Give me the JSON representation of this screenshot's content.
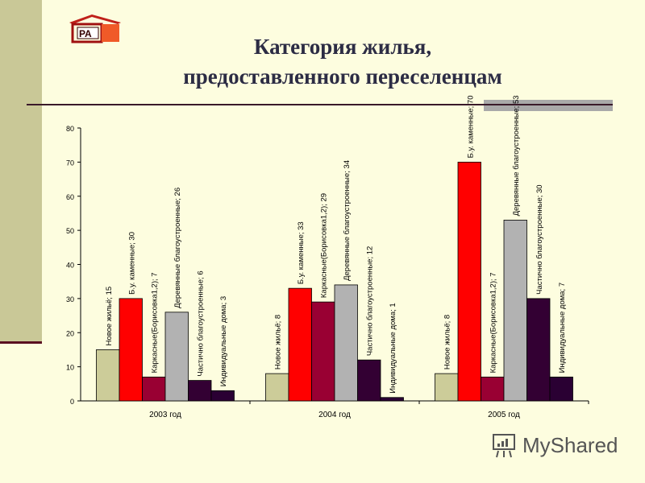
{
  "header": {
    "title_line1": "Категория жилья,",
    "title_line2": "предоставленного переселенцам",
    "logo_text": "РА"
  },
  "watermark": "MyShared",
  "chart_data": {
    "type": "bar",
    "categories": [
      "2003 год",
      "2004 год",
      "2005 год"
    ],
    "series": [
      {
        "name": "Новое жильё",
        "values": [
          15,
          8,
          8
        ],
        "color": "#cccc99"
      },
      {
        "name": "Б.у. каменные",
        "values": [
          30,
          33,
          70
        ],
        "color": "#ff0000"
      },
      {
        "name": "Каркасные(Борисовка1,2)",
        "values": [
          7,
          29,
          7
        ],
        "color": "#990033"
      },
      {
        "name": "Деревянные благоустроенные",
        "values": [
          26,
          34,
          53
        ],
        "color": "#b2b2b2"
      },
      {
        "name": "Частично благоустроенные",
        "values": [
          6,
          12,
          30
        ],
        "color": "#330033"
      },
      {
        "name": "Индивидуальные дома",
        "values": [
          3,
          1,
          7
        ],
        "color": "#2a0033"
      }
    ],
    "ylim": [
      0,
      80
    ],
    "yticks": [
      0,
      10,
      20,
      30,
      40,
      50,
      60,
      70,
      80
    ],
    "grid": false,
    "legend": "none",
    "data_labels": "series name; value"
  }
}
